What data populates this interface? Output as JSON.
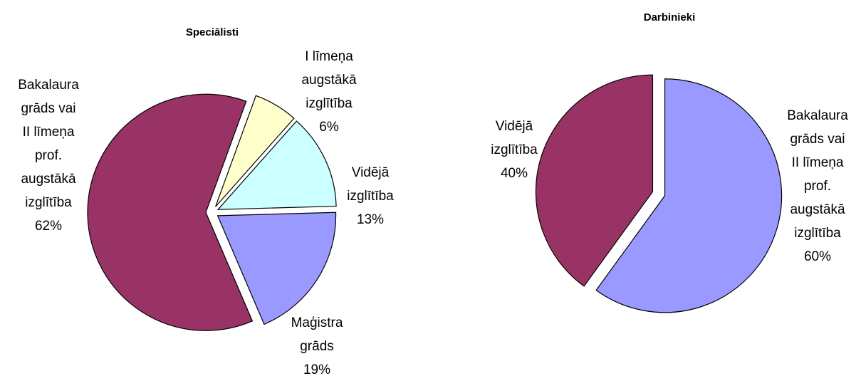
{
  "chart_data": [
    {
      "type": "pie",
      "title": "Speciālisti",
      "categories": [
        "I līmeņa augstākā izglītība",
        "Vidējā izglītība",
        "Maģistra grāds",
        "Bakalaura grāds vai II līmeņa prof. augstākā izglītība"
      ],
      "values": [
        6,
        13,
        19,
        62
      ],
      "value_labels": [
        "6%",
        "13%",
        "19%",
        "62%"
      ],
      "colors": [
        "#ffffcc",
        "#ccffff",
        "#9999ff",
        "#993366"
      ]
    },
    {
      "type": "pie",
      "title": "Darbinieki",
      "categories": [
        "Bakalaura grāds vai II līmeņa prof. augstākā izglītība",
        "Vidējā izglītība"
      ],
      "values": [
        60,
        40
      ],
      "value_labels": [
        "60%",
        "40%"
      ],
      "colors": [
        "#9999ff",
        "#993366"
      ]
    }
  ]
}
